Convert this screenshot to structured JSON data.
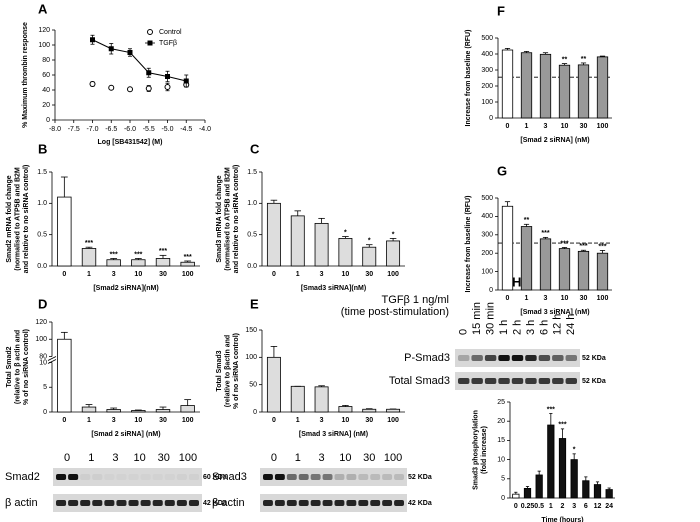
{
  "chart_data": [
    {
      "label": "A",
      "type": "scatter",
      "xlabel": "Log [SB431542] (M)",
      "ylabel": [
        "% Maximum thrombin response"
      ],
      "x": [
        -7.0,
        -6.5,
        -6.0,
        -5.5,
        -5.0,
        -4.5
      ],
      "series": [
        {
          "name": "Control",
          "color": "#000000",
          "marker": "circle",
          "values": [
            48,
            43,
            41,
            42,
            44,
            47
          ],
          "errors": [
            3,
            1,
            1,
            4,
            5,
            3
          ]
        },
        {
          "name": "TGFβ",
          "color": "#000000",
          "marker": "square",
          "fit": true,
          "values": [
            107,
            95,
            90,
            63,
            58,
            52
          ],
          "errors": [
            6,
            7,
            5,
            6,
            7,
            8
          ]
        }
      ],
      "xlim": [
        -8,
        -4
      ],
      "xticks": [
        {
          "value": -8,
          "label": "-8.0"
        },
        {
          "value": -7.5,
          "label": "-7.5"
        },
        {
          "value": -7,
          "label": "-7.0"
        },
        {
          "value": -6.5,
          "label": "-6.5"
        },
        {
          "value": -6,
          "label": "-6.0"
        },
        {
          "value": -5.5,
          "label": "-5.5"
        },
        {
          "value": -5,
          "label": "-5.0"
        },
        {
          "value": -4.5,
          "label": "-4.5"
        },
        {
          "value": -4,
          "label": "-4.0"
        }
      ],
      "ylim": [
        0,
        120
      ],
      "yticks": [
        0,
        20,
        40,
        60,
        80,
        100,
        120
      ],
      "legend": "upper right"
    },
    {
      "label": "B",
      "type": "bar",
      "xlabel": "[Smad2 siRNA](nM)",
      "ylabel": [
        "Smad2 mRNA fold change",
        "(normalised to ATP5B and B2M",
        "and relative to no siRNA control)"
      ],
      "categories": [
        "0",
        "1",
        "3",
        "10",
        "30",
        "100"
      ],
      "values": [
        1.1,
        0.28,
        0.1,
        0.1,
        0.12,
        0.06
      ],
      "errors": [
        0.32,
        0.02,
        0.02,
        0.02,
        0.05,
        0.02
      ],
      "significance": [
        null,
        "***",
        "***",
        "***",
        "***",
        "***"
      ],
      "colors": [
        "#ffffff",
        "#dddddd",
        "#dddddd",
        "#dddddd",
        "#dddddd",
        "#dddddd"
      ],
      "ylim": [
        0,
        1.5
      ],
      "yticks": [
        {
          "value": 0,
          "label": "0.0"
        },
        {
          "value": 0.5,
          "label": "0.5"
        },
        {
          "value": 1,
          "label": "1.0"
        },
        {
          "value": 1.5,
          "label": "1.5"
        }
      ]
    },
    {
      "label": "C",
      "type": "bar",
      "xlabel": "[Smad3 siRNA](nM)",
      "ylabel": [
        "Smad3 mRNA fold change",
        "(normalised to ATP5B and B2M",
        "and relative to no siRNA control)"
      ],
      "categories": [
        "0",
        "1",
        "3",
        "10",
        "30",
        "100"
      ],
      "values": [
        1.0,
        0.8,
        0.68,
        0.44,
        0.3,
        0.4
      ],
      "errors": [
        0.05,
        0.08,
        0.08,
        0.03,
        0.04,
        0.04
      ],
      "significance": [
        null,
        null,
        null,
        "*",
        "*",
        "*"
      ],
      "colors": [
        "#dddddd",
        "#dddddd",
        "#dddddd",
        "#dddddd",
        "#dddddd",
        "#dddddd"
      ],
      "ylim": [
        0,
        1.5
      ],
      "yticks": [
        {
          "value": 0,
          "label": "0.0"
        },
        {
          "value": 0.5,
          "label": "0.5"
        },
        {
          "value": 1,
          "label": "1.0"
        },
        {
          "value": 1.5,
          "label": "1.5"
        }
      ]
    },
    {
      "label": "D",
      "type": "bar",
      "xlabel": "[Smad 2 siRNA] (nM)",
      "ylabel": [
        "Total Smad2",
        "(relative to β actin and",
        "% of no siRNA control)"
      ],
      "categories": [
        "0",
        "1",
        "3",
        "10",
        "30",
        "100"
      ],
      "values": [
        100,
        1,
        0.5,
        0.3,
        0.5,
        1.3
      ],
      "errors": [
        8,
        0.5,
        0.3,
        0.1,
        0.5,
        1.2
      ],
      "significance": [
        null,
        null,
        null,
        null,
        null,
        null
      ],
      "colors": [
        "#ffffff",
        "#dddddd",
        "#dddddd",
        "#dddddd",
        "#dddddd",
        "#dddddd"
      ],
      "ylim": [
        0,
        120
      ],
      "ybreak": [
        10,
        80
      ],
      "yticks": [
        0,
        5,
        10,
        80,
        100,
        120
      ]
    },
    {
      "label": "E",
      "type": "bar",
      "xlabel": "[Smad 3 siRNA] (nM)",
      "ylabel": [
        "Total Smad3",
        "(relative to βactin and",
        "% of no siRNA control)"
      ],
      "categories": [
        "0",
        "1",
        "3",
        "10",
        "30",
        "100"
      ],
      "values": [
        100,
        47,
        46,
        10,
        5,
        5
      ],
      "errors": [
        20,
        0,
        2,
        2,
        1,
        0.5
      ],
      "significance": [
        null,
        null,
        null,
        null,
        null,
        null
      ],
      "colors": [
        "#dddddd",
        "#dddddd",
        "#dddddd",
        "#dddddd",
        "#dddddd",
        "#dddddd"
      ],
      "ylim": [
        0,
        150
      ],
      "yticks": [
        0,
        50,
        100,
        150
      ]
    },
    {
      "label": "F",
      "type": "bar",
      "xlabel": "[Smad 2 siRNA] (nM)",
      "ylabel": [
        "Increase from baseline (RFU)"
      ],
      "categories": [
        "0",
        "1",
        "3",
        "10",
        "30",
        "100"
      ],
      "values": [
        425,
        408,
        398,
        330,
        332,
        382
      ],
      "errors": [
        10,
        8,
        10,
        10,
        12,
        5
      ],
      "significance": [
        null,
        null,
        null,
        "**",
        "**",
        null
      ],
      "colors": [
        "#ffffff",
        "#999999",
        "#999999",
        "#999999",
        "#999999",
        "#999999"
      ],
      "baseline": 255,
      "ylim": [
        0,
        500
      ],
      "yticks": [
        0,
        100,
        200,
        300,
        400,
        500
      ]
    },
    {
      "label": "G",
      "type": "bar",
      "xlabel": "[Smad 3 siRNA] (nM)",
      "ylabel": [
        "Increase from baseline (RFU)"
      ],
      "categories": [
        "0",
        "1",
        "3",
        "10",
        "30",
        "100"
      ],
      "values": [
        455,
        345,
        278,
        225,
        210,
        200
      ],
      "errors": [
        25,
        12,
        8,
        6,
        6,
        15
      ],
      "significance": [
        null,
        "**",
        "***",
        "***",
        "***",
        "***"
      ],
      "colors": [
        "#ffffff",
        "#999999",
        "#999999",
        "#999999",
        "#999999",
        "#999999"
      ],
      "baseline": 255,
      "ylim": [
        0,
        500
      ],
      "yticks": [
        0,
        100,
        200,
        300,
        400,
        500
      ]
    },
    {
      "label": "H",
      "type": "bar",
      "xlabel": "Time (hours)",
      "ylabel": [
        "Smad3 phosphorylation",
        "(fold increase)"
      ],
      "categories": [
        "0",
        "0.25",
        "0.5",
        "1",
        "2",
        "3",
        "6",
        "12",
        "24"
      ],
      "values": [
        1,
        2.5,
        6,
        19,
        15.5,
        10,
        4.5,
        3.5,
        2.2
      ],
      "errors": [
        0.5,
        0.5,
        1,
        3,
        2.5,
        1.5,
        1,
        0.7,
        0.4
      ],
      "significance": [
        null,
        null,
        null,
        "***",
        "***",
        "*",
        null,
        null,
        null
      ],
      "colors": [
        "#ffffff",
        "#111111",
        "#111111",
        "#111111",
        "#111111",
        "#111111",
        "#111111",
        "#111111",
        "#111111"
      ],
      "ylim": [
        0,
        25
      ],
      "yticks": [
        0,
        5,
        10,
        15,
        20,
        25
      ]
    }
  ],
  "blots": [
    {
      "lanes": [
        "0",
        "1",
        "3",
        "10",
        "30",
        "100"
      ],
      "rows": [
        {
          "name": "Smad2",
          "size": "60 KDa"
        },
        {
          "name": "β actin",
          "size": "42 KDa"
        }
      ]
    },
    {
      "lanes": [
        "0",
        "1",
        "3",
        "10",
        "30",
        "100"
      ],
      "rows": [
        {
          "name": "Smad3",
          "size": "52 KDa"
        },
        {
          "name": "β actin",
          "size": "42 KDa"
        }
      ]
    },
    {
      "header": [
        "TGFβ  1 ng/ml",
        "(time post-stimulation)"
      ],
      "lanes": [
        "0",
        "15 min",
        "30 min",
        "1 h",
        "2 h",
        "3 h",
        "6 h",
        "12 h",
        "24 h"
      ],
      "rows": [
        {
          "name": "P-Smad3",
          "size": "52 KDa"
        },
        {
          "name": "Total Smad3",
          "size": "52 KDa"
        }
      ]
    }
  ]
}
